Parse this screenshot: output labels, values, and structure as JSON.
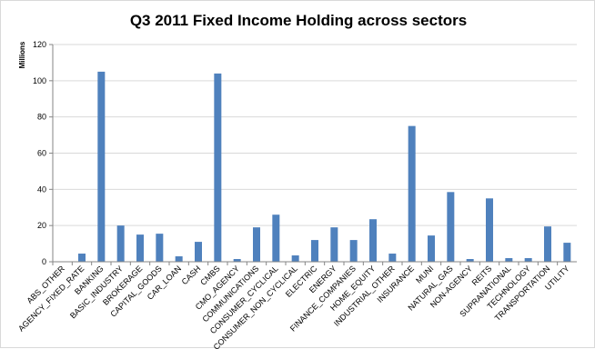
{
  "chart_data": {
    "type": "bar",
    "title": "Q3 2011 Fixed Income Holding across sectors",
    "ylabel": "Millions",
    "xlabel": "",
    "ylim": [
      0,
      120
    ],
    "yticks": [
      0,
      20,
      40,
      60,
      80,
      100,
      120
    ],
    "grid": true,
    "legend": "none",
    "bar_color": "#4f81bd",
    "categories": [
      "ABS_OTHER",
      "AGENCY_FIXED_RATE",
      "BANKING",
      "BASIC_INDUSTRY",
      "BROKERAGE",
      "CAPITAL_GOODS",
      "CAR_LOAN",
      "CASH",
      "CMBS",
      "CMO_AGENCY",
      "COMMUNICATIONS",
      "CONSUMER_CYCLICAL",
      "CONSUMER_NON_CYCLICAL",
      "ELECTRIC",
      "ENERGY",
      "FINANCE_COMPANIES",
      "HOME_EQUITY",
      "INDUSTRIAL_OTHER",
      "INSURANCE",
      "MUNI",
      "NATURAL_GAS",
      "NON-AGENCY",
      "REITS",
      "SUPRANATIONAL",
      "TECHNOLOGY",
      "TRANSPORTATION",
      "UTILITY"
    ],
    "values": [
      0,
      4.5,
      105,
      20,
      15,
      15.5,
      3,
      11,
      104,
      1.5,
      19,
      26,
      3.5,
      12,
      19,
      12,
      23.5,
      4.5,
      75,
      14.5,
      38.5,
      1.5,
      35,
      2,
      2,
      19.5,
      10.5
    ]
  }
}
